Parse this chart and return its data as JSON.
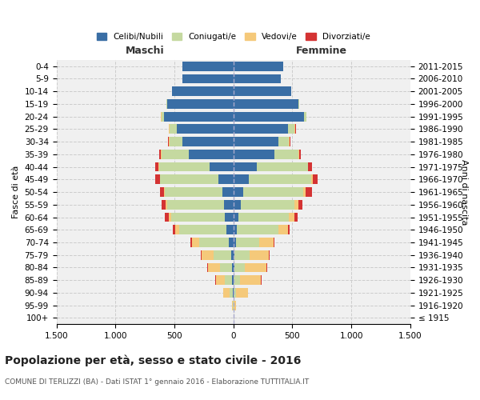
{
  "age_groups": [
    "100+",
    "95-99",
    "90-94",
    "85-89",
    "80-84",
    "75-79",
    "70-74",
    "65-69",
    "60-64",
    "55-59",
    "50-54",
    "45-49",
    "40-44",
    "35-39",
    "30-34",
    "25-29",
    "20-24",
    "15-19",
    "10-14",
    "5-9",
    "0-4"
  ],
  "birth_years": [
    "≤ 1915",
    "1916-1920",
    "1921-1925",
    "1926-1930",
    "1931-1935",
    "1936-1940",
    "1941-1945",
    "1946-1950",
    "1951-1955",
    "1956-1960",
    "1961-1965",
    "1966-1970",
    "1971-1975",
    "1976-1980",
    "1981-1985",
    "1986-1990",
    "1991-1995",
    "1996-2000",
    "2001-2005",
    "2006-2010",
    "2011-2015"
  ],
  "colors": {
    "celibe": "#3a6ea5",
    "coniugato": "#c5d9a0",
    "vedovo": "#f5c97a",
    "divorziato": "#d43333"
  },
  "maschi": {
    "celibe": [
      0,
      0,
      5,
      10,
      15,
      20,
      40,
      60,
      70,
      80,
      90,
      130,
      200,
      380,
      430,
      480,
      590,
      560,
      520,
      430,
      430
    ],
    "coniugato": [
      0,
      5,
      30,
      60,
      100,
      150,
      250,
      400,
      460,
      480,
      490,
      490,
      430,
      230,
      110,
      60,
      20,
      5,
      0,
      0,
      0
    ],
    "vedovo": [
      0,
      5,
      50,
      80,
      100,
      100,
      60,
      30,
      20,
      15,
      10,
      5,
      5,
      5,
      5,
      5,
      5,
      0,
      0,
      0,
      0
    ],
    "divorziato": [
      0,
      0,
      0,
      5,
      5,
      5,
      15,
      25,
      30,
      35,
      30,
      35,
      30,
      15,
      10,
      5,
      0,
      0,
      0,
      0,
      0
    ]
  },
  "femmine": {
    "nubile": [
      0,
      0,
      5,
      5,
      10,
      10,
      20,
      30,
      40,
      60,
      80,
      130,
      200,
      350,
      380,
      460,
      600,
      550,
      490,
      400,
      420
    ],
    "coniugata": [
      0,
      5,
      20,
      50,
      90,
      130,
      200,
      350,
      430,
      460,
      510,
      530,
      430,
      200,
      90,
      60,
      20,
      5,
      0,
      0,
      0
    ],
    "vedova": [
      5,
      20,
      100,
      180,
      180,
      160,
      120,
      80,
      50,
      30,
      20,
      10,
      5,
      5,
      5,
      5,
      0,
      0,
      0,
      0,
      0
    ],
    "divorziata": [
      0,
      0,
      0,
      5,
      5,
      5,
      5,
      15,
      25,
      35,
      55,
      45,
      30,
      15,
      5,
      5,
      0,
      0,
      0,
      0,
      0
    ]
  },
  "xlim": 1500,
  "xticks": [
    -1500,
    -1000,
    -500,
    0,
    500,
    1000,
    1500
  ],
  "xticklabels": [
    "1.500",
    "1.000",
    "500",
    "0",
    "500",
    "1.000",
    "1.500"
  ],
  "title": "Popolazione per età, sesso e stato civile - 2016",
  "subtitle": "COMUNE DI TERLIZZI (BA) - Dati ISTAT 1° gennaio 2016 - Elaborazione TUTTITALIA.IT",
  "ylabel_left": "Fasce di età",
  "ylabel_right": "Anni di nascita",
  "legend_labels": [
    "Celibi/Nubili",
    "Coniugati/e",
    "Vedovi/e",
    "Divorziati/e"
  ],
  "legend_colors": [
    "#3a6ea5",
    "#c5d9a0",
    "#f5c97a",
    "#d43333"
  ],
  "bg_color": "#f0f0f0",
  "grid_color": "#cccccc"
}
